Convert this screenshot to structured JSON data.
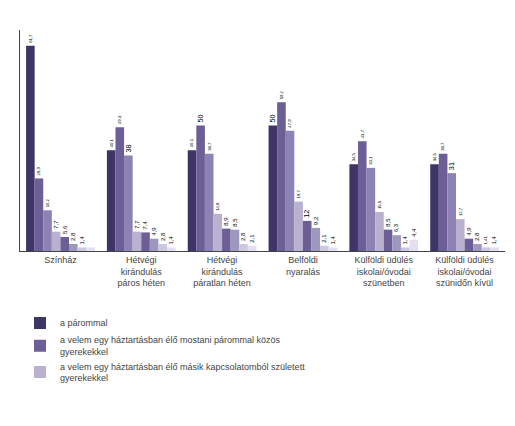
{
  "chart_data": {
    "type": "bar",
    "categories": [
      "Színház",
      "Hétvégi\nkirándulás\npáros héten",
      "Hétvégi\nkirándulás\npáratlan héten",
      "Belföldi\nnyaralás",
      "Külföldi üdülés\niskolai/óvodai\nszünetben",
      "Külföldi üdülés\niskolai/óvodai\nszünidőn kívül"
    ],
    "series": [
      {
        "name": "a párommal",
        "color": "#3d3565",
        "values": [
          81.7,
          40.1,
          40.1,
          50.0,
          34.5,
          34.5
        ],
        "value_labels": [
          "81,7",
          "40,1",
          "40,1",
          "50",
          "34,5",
          "34,5"
        ]
      },
      {
        "name": "a velem egy háztartásban élő mostani párommal közös\ngyerekekkel",
        "color": "#6b5f96",
        "values": [
          28.9,
          49.3,
          50.0,
          59.2,
          43.7,
          38.7
        ],
        "value_labels": [
          "28,9",
          "49,3",
          "50",
          "59,2",
          "43,7",
          "38,7"
        ]
      },
      {
        "color": "#8c82b4",
        "values": [
          16.2,
          38.0,
          38.7,
          47.9,
          33.1,
          31.0
        ],
        "value_labels": [
          "16,2",
          "38",
          "38,7",
          "47,9",
          "33,1",
          "31"
        ]
      },
      {
        "name": "a velem egy háztartásban élő másik kapcsolatomból született\ngyerekekkel",
        "color": "#b8b2d0",
        "values": [
          7.7,
          7.7,
          14.8,
          19.7,
          15.5,
          12.7
        ],
        "value_labels": [
          "7,7",
          "7,7",
          "14,8",
          "19,7",
          "15,5",
          "12,7"
        ]
      },
      {
        "color": "#6b5f96",
        "values": [
          5.6,
          7.4,
          8.9,
          12.0,
          8.5,
          4.9
        ],
        "value_labels": [
          "5,6",
          "7,4",
          "8,9",
          "12",
          "8,5",
          "4,9"
        ]
      },
      {
        "color": "#9e98be",
        "values": [
          2.8,
          4.9,
          8.5,
          9.2,
          6.3,
          2.8
        ],
        "value_labels": [
          "2,8",
          "4,9",
          "8,5",
          "9,2",
          "6,3",
          "2,8"
        ]
      },
      {
        "color": "#ccc8e0",
        "values": [
          1.4,
          2.8,
          2.8,
          2.1,
          1.4,
          1.41
        ],
        "value_labels": [
          "1,4",
          "2,8",
          "2,8",
          "2,1",
          "1,4",
          "1,41"
        ]
      },
      {
        "color": "#e2dff0",
        "values": [
          1.4,
          1.4,
          2.1,
          1.4,
          4.4,
          1.4
        ],
        "value_labels": [
          null,
          "1,4",
          "2,1",
          "1,4",
          "4,4",
          "1,4"
        ]
      }
    ],
    "ylim": [
      0,
      88
    ],
    "grid": false,
    "data_labels": true,
    "tick_labels": "x"
  }
}
